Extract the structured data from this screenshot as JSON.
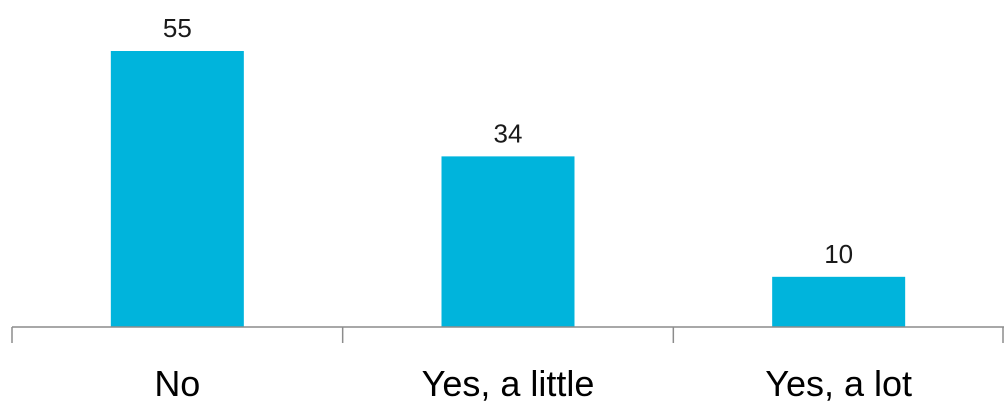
{
  "chart_data": {
    "type": "bar",
    "categories": [
      "No",
      "Yes, a little",
      "Yes, a lot"
    ],
    "values": [
      55,
      34,
      10
    ],
    "title": "",
    "xlabel": "",
    "ylabel": "",
    "ylim": [
      0,
      60
    ],
    "grid": false,
    "legend": "none",
    "bar_color": "#00B4DC",
    "axis_color": "#8C8C8C",
    "data_labels": [
      "55",
      "34",
      "10"
    ]
  }
}
